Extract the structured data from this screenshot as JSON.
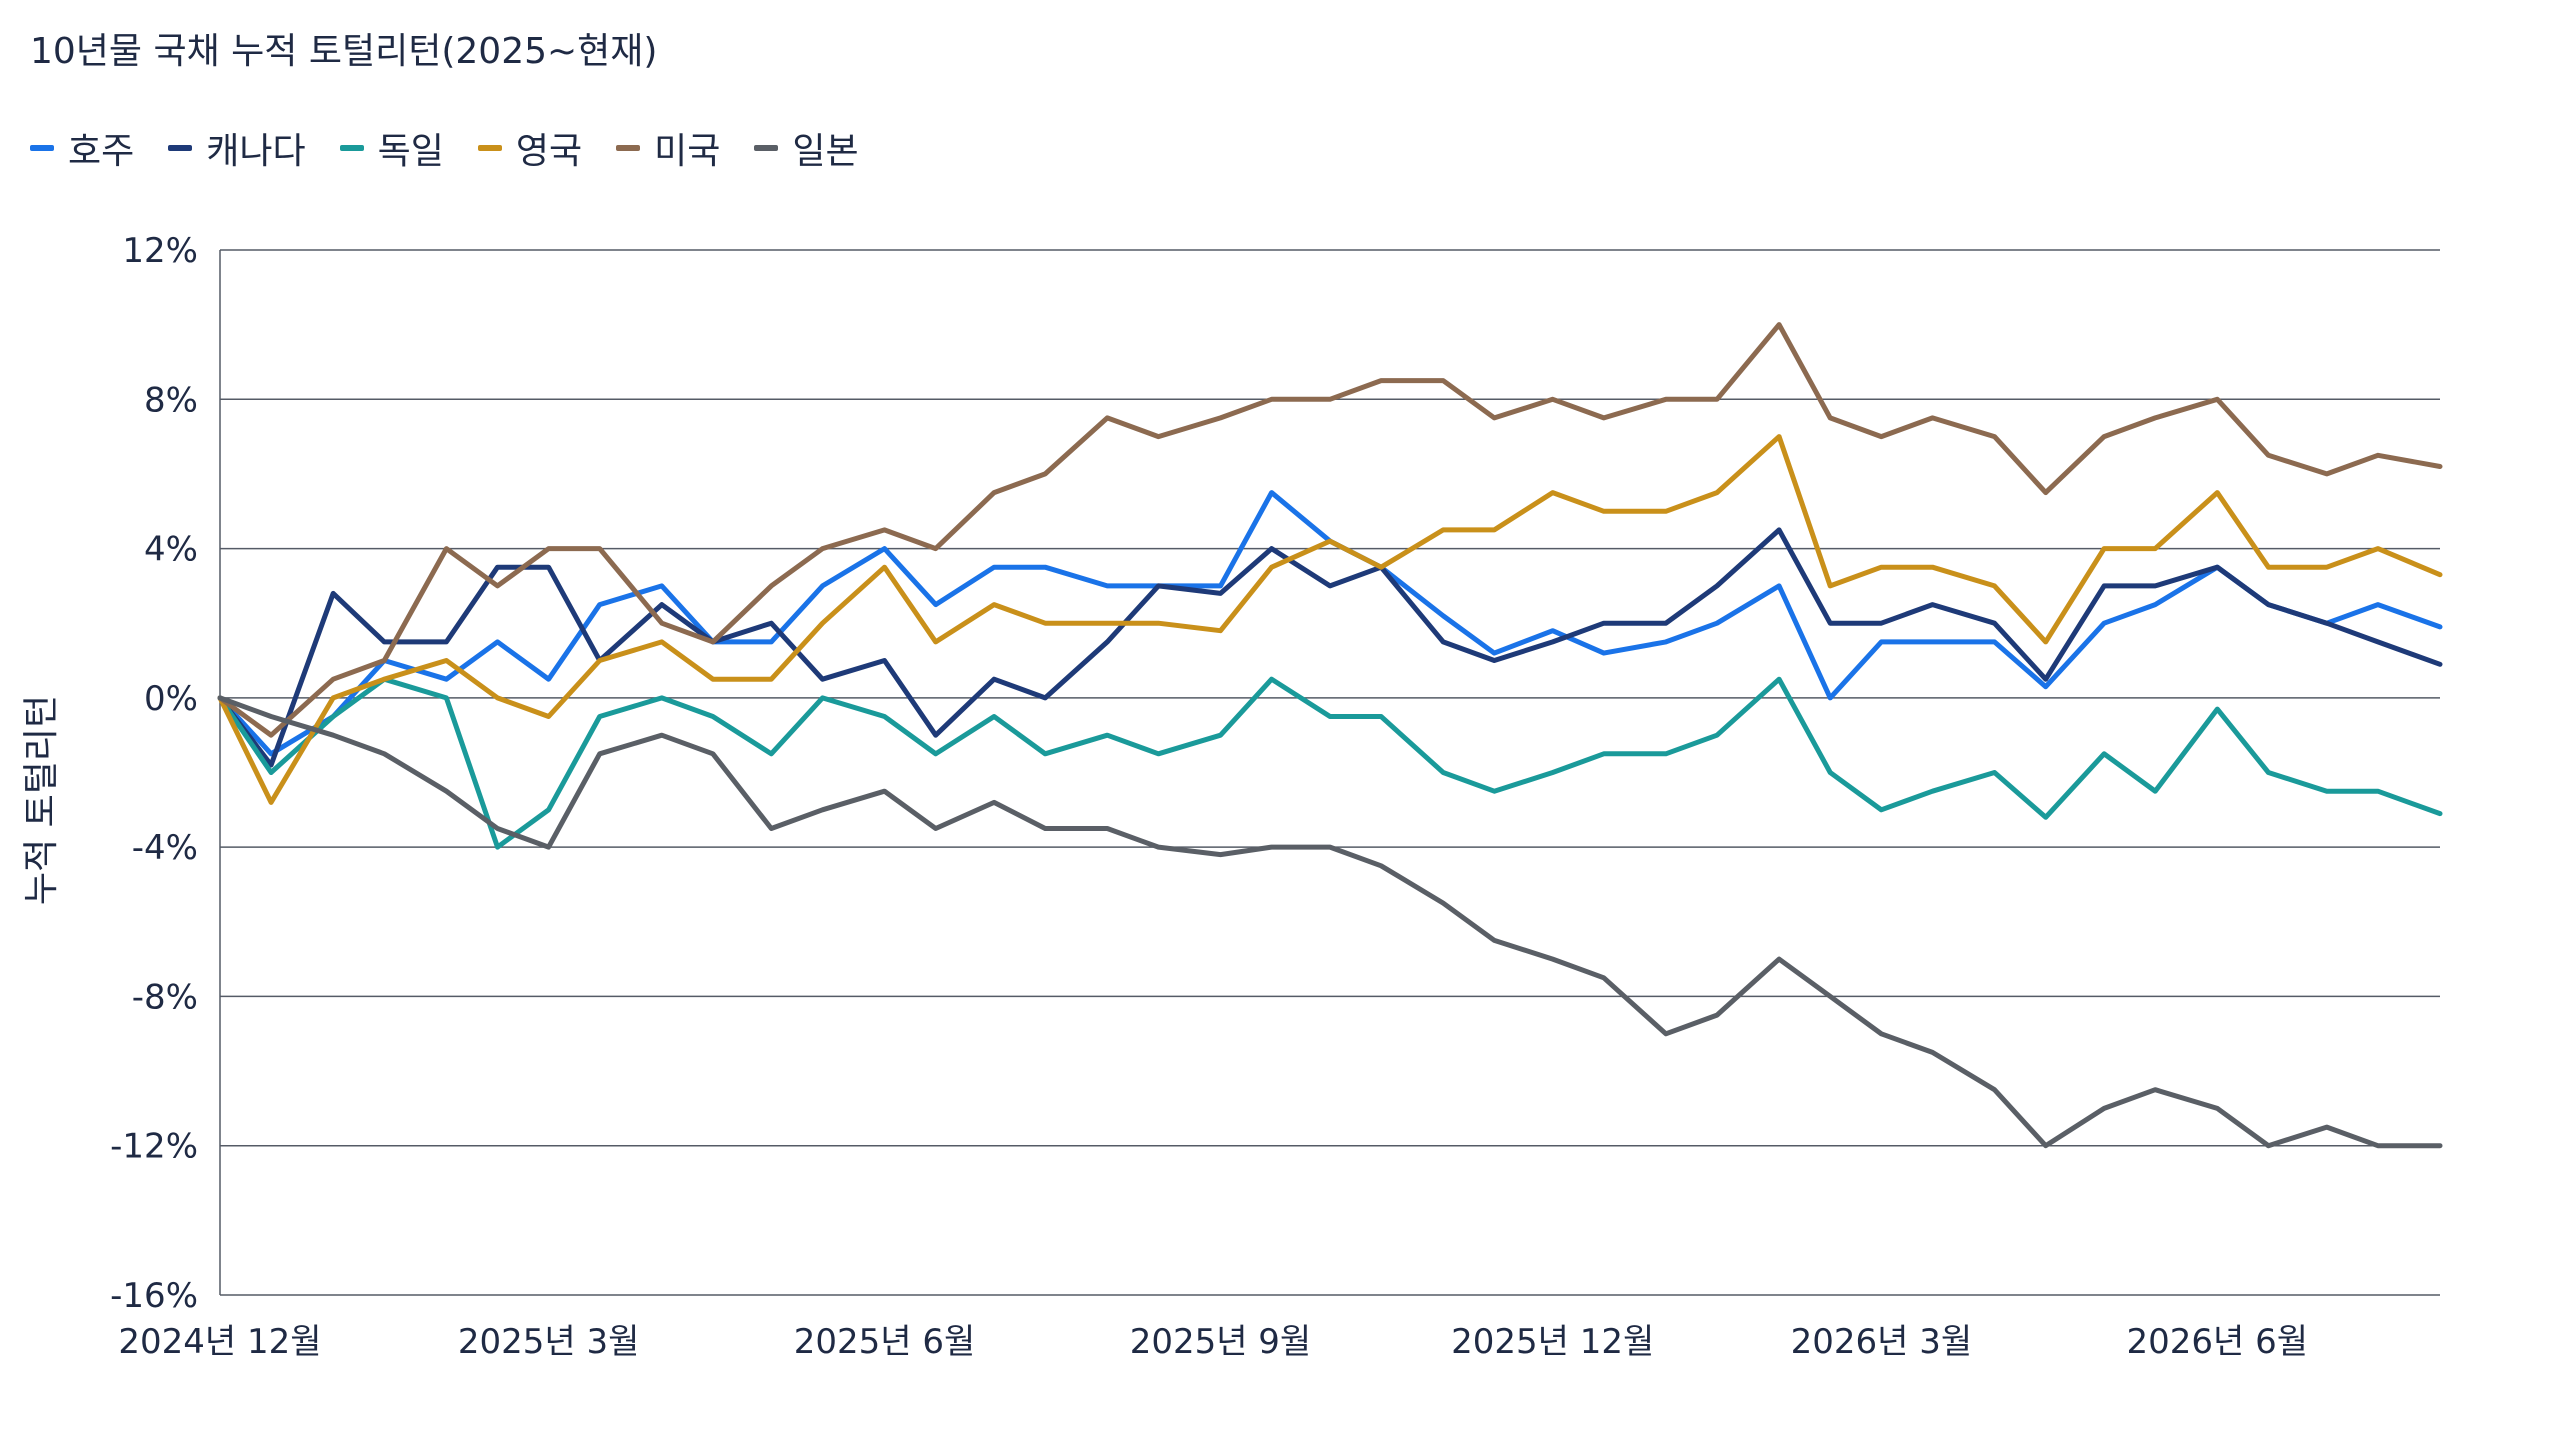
{
  "title": "10년물 국채 누적 토털리턴(2025~현재)",
  "chart_data": {
    "type": "line",
    "ylabel": "누적 토털리턴",
    "xlabel": "",
    "ylim": [
      -16,
      12
    ],
    "yticks": [
      12,
      8,
      4,
      0,
      -4,
      -8,
      -12,
      -16
    ],
    "ytick_labels": [
      "12%",
      "8%",
      "4%",
      "0%",
      "-4%",
      "-8%",
      "-12%",
      "-16%"
    ],
    "xlim": [
      "2024-12-01",
      "2026-08-01"
    ],
    "xticks": [
      "2024-12-01",
      "2025-03-01",
      "2025-06-01",
      "2025-09-01",
      "2025-12-01",
      "2026-03-01",
      "2026-06-01"
    ],
    "xtick_labels": [
      "2024년 12월",
      "2025년 3월",
      "2025년 6월",
      "2025년 9월",
      "2025년 12월",
      "2026년 3월",
      "2026년 6월"
    ],
    "grid": "horizontal",
    "legend_position": "top-left",
    "series": [
      {
        "name": "호주",
        "color": "#1a73e8",
        "points": [
          [
            "2024-12-01",
            0
          ],
          [
            "2024-12-15",
            -1.5
          ],
          [
            "2025-01-01",
            -0.5
          ],
          [
            "2025-01-15",
            1
          ],
          [
            "2025-02-01",
            0.5
          ],
          [
            "2025-02-15",
            1.5
          ],
          [
            "2025-03-01",
            0.5
          ],
          [
            "2025-03-15",
            2.5
          ],
          [
            "2025-04-01",
            3
          ],
          [
            "2025-04-15",
            1.5
          ],
          [
            "2025-05-01",
            1.5
          ],
          [
            "2025-05-15",
            3
          ],
          [
            "2025-06-01",
            4
          ],
          [
            "2025-06-15",
            2.5
          ],
          [
            "2025-07-01",
            3.5
          ],
          [
            "2025-07-15",
            3.5
          ],
          [
            "2025-08-01",
            3
          ],
          [
            "2025-08-15",
            3
          ],
          [
            "2025-09-01",
            3
          ],
          [
            "2025-09-15",
            5.5
          ],
          [
            "2025-10-01",
            4.2
          ],
          [
            "2025-10-15",
            3.5
          ],
          [
            "2025-11-01",
            2.2
          ],
          [
            "2025-11-15",
            1.2
          ],
          [
            "2025-12-01",
            1.8
          ],
          [
            "2025-12-15",
            1.2
          ],
          [
            "2026-01-01",
            1.5
          ],
          [
            "2026-01-15",
            2
          ],
          [
            "2026-02-01",
            3
          ],
          [
            "2026-02-15",
            0
          ],
          [
            "2026-03-01",
            1.5
          ],
          [
            "2026-03-15",
            1.5
          ],
          [
            "2026-04-01",
            1.5
          ],
          [
            "2026-04-15",
            0.3
          ],
          [
            "2026-05-01",
            2
          ],
          [
            "2026-05-15",
            2.5
          ],
          [
            "2026-06-01",
            3.5
          ],
          [
            "2026-06-15",
            2.5
          ],
          [
            "2026-07-01",
            2
          ],
          [
            "2026-07-15",
            2.5
          ],
          [
            "2026-08-01",
            1.9
          ]
        ]
      },
      {
        "name": "캐나다",
        "color": "#1e3a78",
        "points": [
          [
            "2024-12-01",
            0
          ],
          [
            "2024-12-15",
            -1.8
          ],
          [
            "2025-01-01",
            2.8
          ],
          [
            "2025-01-15",
            1.5
          ],
          [
            "2025-02-01",
            1.5
          ],
          [
            "2025-02-15",
            3.5
          ],
          [
            "2025-03-01",
            3.5
          ],
          [
            "2025-03-15",
            1
          ],
          [
            "2025-04-01",
            2.5
          ],
          [
            "2025-04-15",
            1.5
          ],
          [
            "2025-05-01",
            2
          ],
          [
            "2025-05-15",
            0.5
          ],
          [
            "2025-06-01",
            1
          ],
          [
            "2025-06-15",
            -1
          ],
          [
            "2025-07-01",
            0.5
          ],
          [
            "2025-07-15",
            0
          ],
          [
            "2025-08-01",
            1.5
          ],
          [
            "2025-08-15",
            3
          ],
          [
            "2025-09-01",
            2.8
          ],
          [
            "2025-09-15",
            4
          ],
          [
            "2025-10-01",
            3
          ],
          [
            "2025-10-15",
            3.5
          ],
          [
            "2025-11-01",
            1.5
          ],
          [
            "2025-11-15",
            1
          ],
          [
            "2025-12-01",
            1.5
          ],
          [
            "2025-12-15",
            2
          ],
          [
            "2026-01-01",
            2
          ],
          [
            "2026-01-15",
            3
          ],
          [
            "2026-02-01",
            4.5
          ],
          [
            "2026-02-15",
            2
          ],
          [
            "2026-03-01",
            2
          ],
          [
            "2026-03-15",
            2.5
          ],
          [
            "2026-04-01",
            2
          ],
          [
            "2026-04-15",
            0.5
          ],
          [
            "2026-05-01",
            3
          ],
          [
            "2026-05-15",
            3
          ],
          [
            "2026-06-01",
            3.5
          ],
          [
            "2026-06-15",
            2.5
          ],
          [
            "2026-07-01",
            2
          ],
          [
            "2026-07-15",
            1.5
          ],
          [
            "2026-08-01",
            0.9
          ]
        ]
      },
      {
        "name": "독일",
        "color": "#1a9a9a",
        "points": [
          [
            "2024-12-01",
            0
          ],
          [
            "2024-12-15",
            -2
          ],
          [
            "2025-01-01",
            -0.5
          ],
          [
            "2025-01-15",
            0.5
          ],
          [
            "2025-02-01",
            0
          ],
          [
            "2025-02-15",
            -4
          ],
          [
            "2025-03-01",
            -3
          ],
          [
            "2025-03-15",
            -0.5
          ],
          [
            "2025-04-01",
            0
          ],
          [
            "2025-04-15",
            -0.5
          ],
          [
            "2025-05-01",
            -1.5
          ],
          [
            "2025-05-15",
            0
          ],
          [
            "2025-06-01",
            -0.5
          ],
          [
            "2025-06-15",
            -1.5
          ],
          [
            "2025-07-01",
            -0.5
          ],
          [
            "2025-07-15",
            -1.5
          ],
          [
            "2025-08-01",
            -1
          ],
          [
            "2025-08-15",
            -1.5
          ],
          [
            "2025-09-01",
            -1
          ],
          [
            "2025-09-15",
            0.5
          ],
          [
            "2025-10-01",
            -0.5
          ],
          [
            "2025-10-15",
            -0.5
          ],
          [
            "2025-11-01",
            -2
          ],
          [
            "2025-11-15",
            -2.5
          ],
          [
            "2025-12-01",
            -2
          ],
          [
            "2025-12-15",
            -1.5
          ],
          [
            "2026-01-01",
            -1.5
          ],
          [
            "2026-01-15",
            -1
          ],
          [
            "2026-02-01",
            0.5
          ],
          [
            "2026-02-15",
            -2
          ],
          [
            "2026-03-01",
            -3
          ],
          [
            "2026-03-15",
            -2.5
          ],
          [
            "2026-04-01",
            -2
          ],
          [
            "2026-04-15",
            -3.2
          ],
          [
            "2026-05-01",
            -1.5
          ],
          [
            "2026-05-15",
            -2.5
          ],
          [
            "2026-06-01",
            -0.3
          ],
          [
            "2026-06-15",
            -2
          ],
          [
            "2026-07-01",
            -2.5
          ],
          [
            "2026-07-15",
            -2.5
          ],
          [
            "2026-08-01",
            -3.1
          ]
        ]
      },
      {
        "name": "영국",
        "color": "#c9901a",
        "points": [
          [
            "2024-12-01",
            0
          ],
          [
            "2024-12-15",
            -2.8
          ],
          [
            "2025-01-01",
            0
          ],
          [
            "2025-01-15",
            0.5
          ],
          [
            "2025-02-01",
            1
          ],
          [
            "2025-02-15",
            0
          ],
          [
            "2025-03-01",
            -0.5
          ],
          [
            "2025-03-15",
            1
          ],
          [
            "2025-04-01",
            1.5
          ],
          [
            "2025-04-15",
            0.5
          ],
          [
            "2025-05-01",
            0.5
          ],
          [
            "2025-05-15",
            2
          ],
          [
            "2025-06-01",
            3.5
          ],
          [
            "2025-06-15",
            1.5
          ],
          [
            "2025-07-01",
            2.5
          ],
          [
            "2025-07-15",
            2
          ],
          [
            "2025-08-01",
            2
          ],
          [
            "2025-08-15",
            2
          ],
          [
            "2025-09-01",
            1.8
          ],
          [
            "2025-09-15",
            3.5
          ],
          [
            "2025-10-01",
            4.2
          ],
          [
            "2025-10-15",
            3.5
          ],
          [
            "2025-11-01",
            4.5
          ],
          [
            "2025-11-15",
            4.5
          ],
          [
            "2025-12-01",
            5.5
          ],
          [
            "2025-12-15",
            5
          ],
          [
            "2026-01-01",
            5
          ],
          [
            "2026-01-15",
            5.5
          ],
          [
            "2026-02-01",
            7
          ],
          [
            "2026-02-15",
            3
          ],
          [
            "2026-03-01",
            3.5
          ],
          [
            "2026-03-15",
            3.5
          ],
          [
            "2026-04-01",
            3
          ],
          [
            "2026-04-15",
            1.5
          ],
          [
            "2026-05-01",
            4
          ],
          [
            "2026-05-15",
            4
          ],
          [
            "2026-06-01",
            5.5
          ],
          [
            "2026-06-15",
            3.5
          ],
          [
            "2026-07-01",
            3.5
          ],
          [
            "2026-07-15",
            4
          ],
          [
            "2026-08-01",
            3.3
          ]
        ]
      },
      {
        "name": "미국",
        "color": "#8c6a50",
        "points": [
          [
            "2024-12-01",
            0
          ],
          [
            "2024-12-15",
            -1
          ],
          [
            "2025-01-01",
            0.5
          ],
          [
            "2025-01-15",
            1
          ],
          [
            "2025-02-01",
            4
          ],
          [
            "2025-02-15",
            3
          ],
          [
            "2025-03-01",
            4
          ],
          [
            "2025-03-15",
            4
          ],
          [
            "2025-04-01",
            2
          ],
          [
            "2025-04-15",
            1.5
          ],
          [
            "2025-05-01",
            3
          ],
          [
            "2025-05-15",
            4
          ],
          [
            "2025-06-01",
            4.5
          ],
          [
            "2025-06-15",
            4
          ],
          [
            "2025-07-01",
            5.5
          ],
          [
            "2025-07-15",
            6
          ],
          [
            "2025-08-01",
            7.5
          ],
          [
            "2025-08-15",
            7
          ],
          [
            "2025-09-01",
            7.5
          ],
          [
            "2025-09-15",
            8
          ],
          [
            "2025-10-01",
            8
          ],
          [
            "2025-10-15",
            8.5
          ],
          [
            "2025-11-01",
            8.5
          ],
          [
            "2025-11-15",
            7.5
          ],
          [
            "2025-12-01",
            8
          ],
          [
            "2025-12-15",
            7.5
          ],
          [
            "2026-01-01",
            8
          ],
          [
            "2026-01-15",
            8
          ],
          [
            "2026-02-01",
            10
          ],
          [
            "2026-02-15",
            7.5
          ],
          [
            "2026-03-01",
            7
          ],
          [
            "2026-03-15",
            7.5
          ],
          [
            "2026-04-01",
            7
          ],
          [
            "2026-04-15",
            5.5
          ],
          [
            "2026-05-01",
            7
          ],
          [
            "2026-05-15",
            7.5
          ],
          [
            "2026-06-01",
            8
          ],
          [
            "2026-06-15",
            6.5
          ],
          [
            "2026-07-01",
            6
          ],
          [
            "2026-07-15",
            6.5
          ],
          [
            "2026-08-01",
            6.2
          ]
        ]
      },
      {
        "name": "일본",
        "color": "#5a5f66",
        "points": [
          [
            "2024-12-01",
            0
          ],
          [
            "2024-12-15",
            -0.5
          ],
          [
            "2025-01-01",
            -1
          ],
          [
            "2025-01-15",
            -1.5
          ],
          [
            "2025-02-01",
            -2.5
          ],
          [
            "2025-02-15",
            -3.5
          ],
          [
            "2025-03-01",
            -4
          ],
          [
            "2025-03-15",
            -1.5
          ],
          [
            "2025-04-01",
            -1
          ],
          [
            "2025-04-15",
            -1.5
          ],
          [
            "2025-05-01",
            -3.5
          ],
          [
            "2025-05-15",
            -3
          ],
          [
            "2025-06-01",
            -2.5
          ],
          [
            "2025-06-15",
            -3.5
          ],
          [
            "2025-07-01",
            -2.8
          ],
          [
            "2025-07-15",
            -3.5
          ],
          [
            "2025-08-01",
            -3.5
          ],
          [
            "2025-08-15",
            -4
          ],
          [
            "2025-09-01",
            -4.2
          ],
          [
            "2025-09-15",
            -4
          ],
          [
            "2025-10-01",
            -4
          ],
          [
            "2025-10-15",
            -4.5
          ],
          [
            "2025-11-01",
            -5.5
          ],
          [
            "2025-11-15",
            -6.5
          ],
          [
            "2025-12-01",
            -7
          ],
          [
            "2025-12-15",
            -7.5
          ],
          [
            "2026-01-01",
            -9
          ],
          [
            "2026-01-15",
            -8.5
          ],
          [
            "2026-02-01",
            -7
          ],
          [
            "2026-02-15",
            -8
          ],
          [
            "2026-03-01",
            -9
          ],
          [
            "2026-03-15",
            -9.5
          ],
          [
            "2026-04-01",
            -10.5
          ],
          [
            "2026-04-15",
            -12
          ],
          [
            "2026-05-01",
            -11
          ],
          [
            "2026-05-15",
            -10.5
          ],
          [
            "2026-06-01",
            -11
          ],
          [
            "2026-06-15",
            -12
          ],
          [
            "2026-07-01",
            -11.5
          ],
          [
            "2026-07-15",
            -12
          ],
          [
            "2026-08-01",
            -12
          ]
        ]
      }
    ]
  }
}
